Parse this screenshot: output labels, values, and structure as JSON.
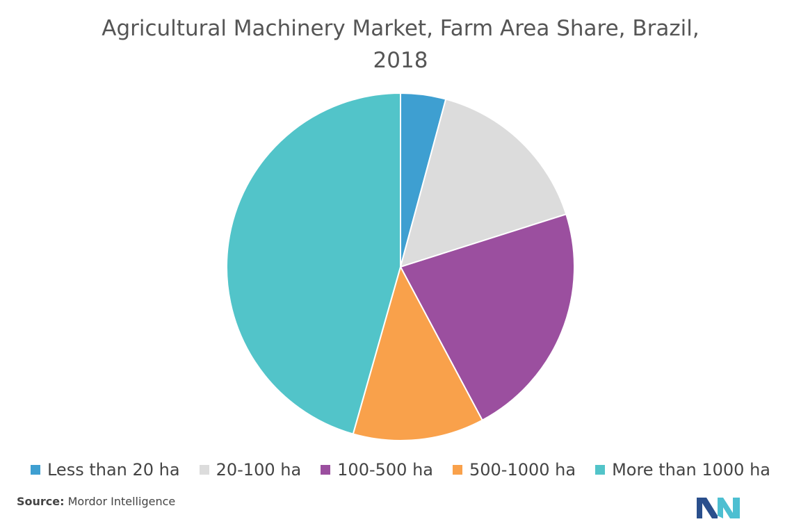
{
  "chart_data": {
    "type": "pie",
    "title": "Agricultural Machinery Market, Farm Area Share, Brazil, 2018",
    "categories": [
      "Less than 20 ha",
      "20-100 ha",
      "100-500 ha",
      "500-1000 ha",
      "More than 1000 ha"
    ],
    "values": [
      4.2,
      15.9,
      22.1,
      12.2,
      45.6
    ],
    "colors": [
      "#3e9fd1",
      "#dcdcdc",
      "#9b4f9f",
      "#f9a14b",
      "#52c4c9"
    ],
    "source_label": "Source:",
    "source": "Mordor Intelligence"
  }
}
